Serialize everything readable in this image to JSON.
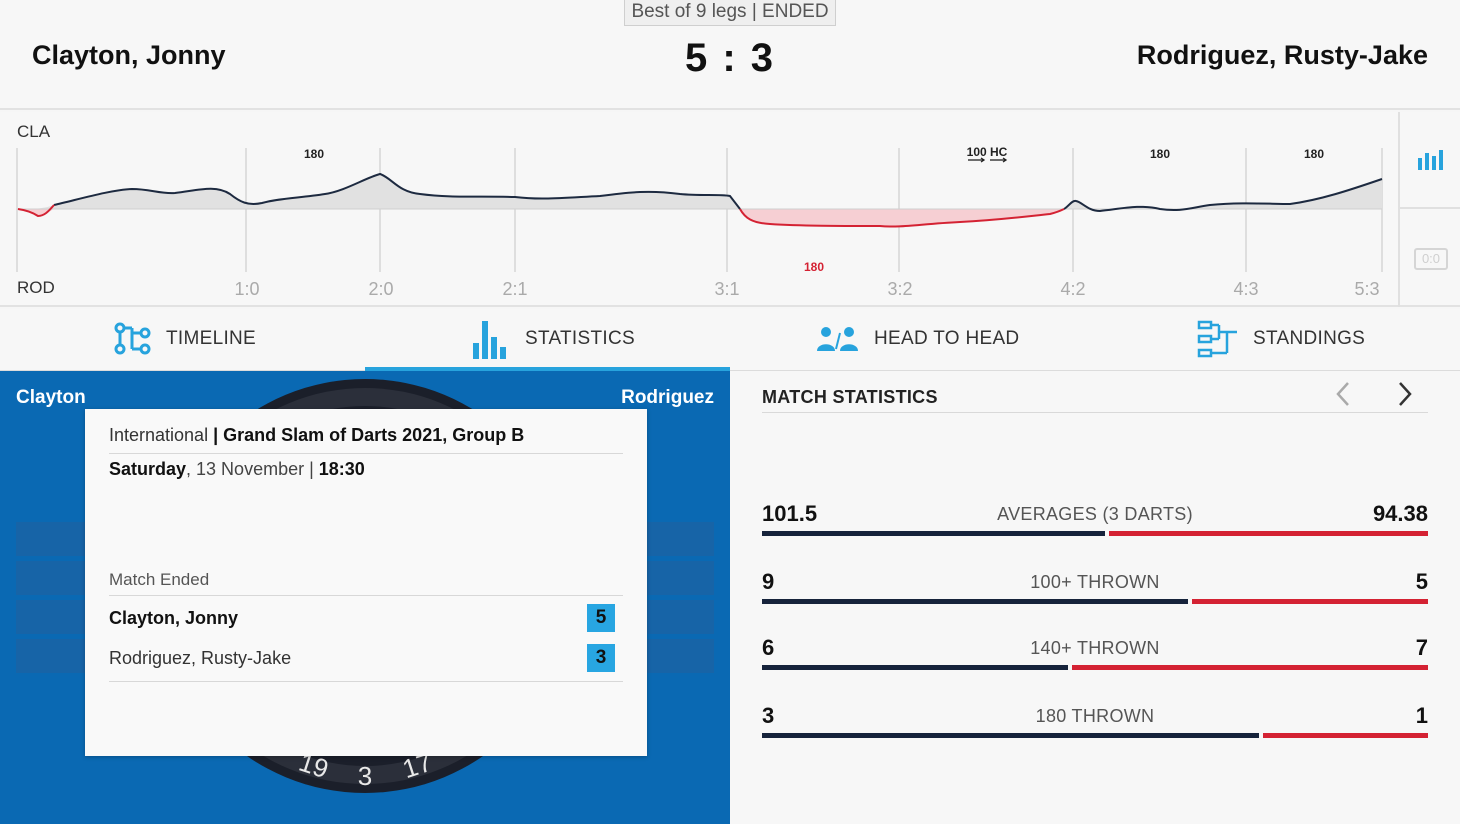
{
  "header": {
    "format": "Best of 9 legs | ENDED",
    "player_left": "Clayton, Jonny",
    "player_right": "Rodriguez, Rusty-Jake",
    "score": "5 : 3"
  },
  "momentum": {
    "label_top": "CLA",
    "label_bottom": "ROD",
    "leg_labels": [
      "1:0",
      "2:0",
      "2:1",
      "3:1",
      "3:2",
      "4:2",
      "4:3",
      "5:3"
    ],
    "markers_top": [
      "180",
      "100 HC",
      "180",
      "180"
    ],
    "markers_bottom": [
      "180"
    ],
    "side_score": "0:0",
    "colors": {
      "positive_fill": "#dedede",
      "negative_fill": "#f6cfd3",
      "positive_line": "#1d2a40",
      "negative_line": "#d42233"
    }
  },
  "tabs": [
    {
      "label": "TIMELINE",
      "icon": "timeline-icon",
      "active": false
    },
    {
      "label": "STATISTICS",
      "icon": "statistics-icon",
      "active": true
    },
    {
      "label": "HEAD TO HEAD",
      "icon": "head-to-head-icon",
      "active": false
    },
    {
      "label": "STANDINGS",
      "icon": "standings-icon",
      "active": false
    }
  ],
  "match_panel": {
    "name_left": "Clayton",
    "name_right": "Rodriguez",
    "dartboard_numbers": [
      "19",
      "3",
      "17"
    ],
    "info": {
      "competition_prefix": "International",
      "competition_sep": " | ",
      "competition": "Grand Slam of Darts 2021, Group B",
      "day": "Saturday",
      "date": ", 13 November | ",
      "time": "18:30",
      "status": "Match Ended",
      "player1": "Clayton, Jonny",
      "player1_score": "5",
      "player2": "Rodriguez, Rusty-Jake",
      "player2_score": "3"
    }
  },
  "stats": {
    "title": "MATCH STATISTICS",
    "rows": [
      {
        "label": "AVERAGES (3 DARTS)",
        "left": "101.5",
        "right": "94.38",
        "left_share": 0.518
      },
      {
        "label": "100+ THROWN",
        "left": "9",
        "right": "5",
        "left_share": 0.643
      },
      {
        "label": "140+ THROWN",
        "left": "6",
        "right": "7",
        "left_share": 0.462
      },
      {
        "label": "180 THROWN",
        "left": "3",
        "right": "1",
        "left_share": 0.75
      }
    ],
    "colors": {
      "left": "#16233b",
      "right": "#d42233"
    }
  }
}
